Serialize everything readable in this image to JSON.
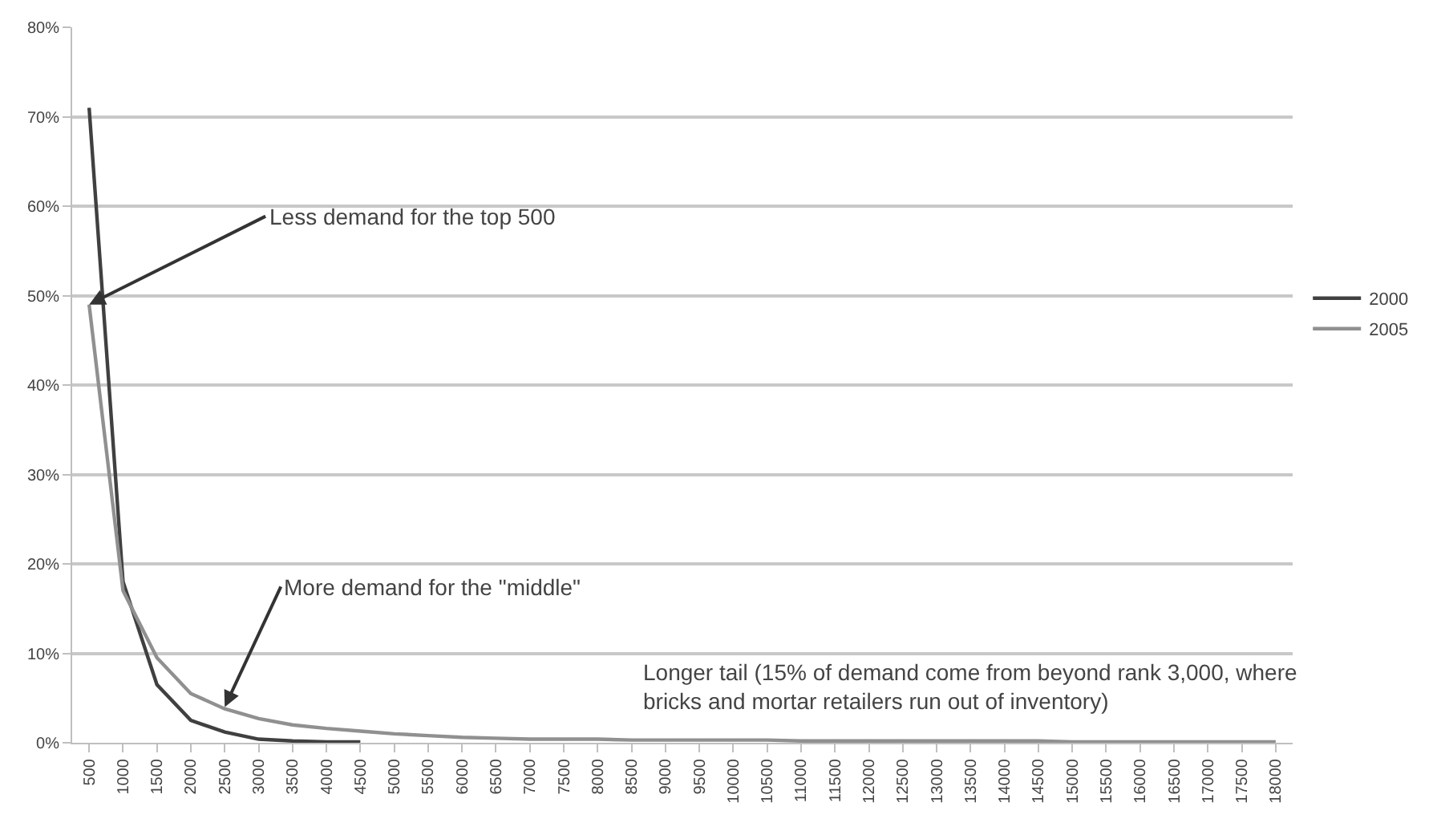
{
  "chart_data": {
    "type": "line",
    "categories": [
      "500",
      "1000",
      "1500",
      "2000",
      "2500",
      "3000",
      "3500",
      "4000",
      "4500",
      "5000",
      "5500",
      "6000",
      "6500",
      "7000",
      "7500",
      "8000",
      "8500",
      "9000",
      "9500",
      "10000",
      "10500",
      "11000",
      "11500",
      "12000",
      "12500",
      "13000",
      "13500",
      "14000",
      "14500",
      "15000",
      "15500",
      "16000",
      "16500",
      "17000",
      "17500",
      "18000"
    ],
    "series": [
      {
        "name": "2000",
        "color": "#404040",
        "values": [
          71,
          18,
          6.5,
          2.5,
          1.2,
          0.4,
          0.2,
          0.1,
          0.1,
          null,
          null,
          null,
          null,
          null,
          null,
          null,
          null,
          null,
          null,
          null,
          null,
          null,
          null,
          null,
          null,
          null,
          null,
          null,
          null,
          null,
          null,
          null,
          null,
          null,
          null,
          null
        ]
      },
      {
        "name": "2005",
        "color": "#909090",
        "values": [
          49,
          17,
          9.5,
          5.5,
          3.8,
          2.7,
          2.0,
          1.6,
          1.3,
          1.0,
          0.8,
          0.6,
          0.5,
          0.4,
          0.4,
          0.4,
          0.3,
          0.3,
          0.3,
          0.3,
          0.3,
          0.2,
          0.2,
          0.2,
          0.2,
          0.2,
          0.2,
          0.2,
          0.2,
          0.1,
          0.1,
          0.1,
          0.1,
          0.1,
          0.1,
          0.1
        ]
      }
    ],
    "ylim": [
      0,
      80
    ],
    "yticks": [
      {
        "value": 0,
        "label": "0%"
      },
      {
        "value": 10,
        "label": "10%"
      },
      {
        "value": 20,
        "label": "20%"
      },
      {
        "value": 30,
        "label": "30%"
      },
      {
        "value": 40,
        "label": "40%"
      },
      {
        "value": 50,
        "label": "50%"
      },
      {
        "value": 60,
        "label": "60%"
      },
      {
        "value": 70,
        "label": "70%"
      },
      {
        "value": 80,
        "label": "80%"
      }
    ],
    "grid": "y",
    "legend": "right",
    "marker": "none",
    "line_style": "solid",
    "annotations": [
      {
        "text": "Less demand for the top 500",
        "x": "500",
        "y": 49
      },
      {
        "text": "More demand for the \"middle\"",
        "x": "2500",
        "y": 4
      },
      "Longer tail (15% of demand come from beyond rank 3,000, where\nbricks and mortar retailers run out of inventory)"
    ]
  }
}
